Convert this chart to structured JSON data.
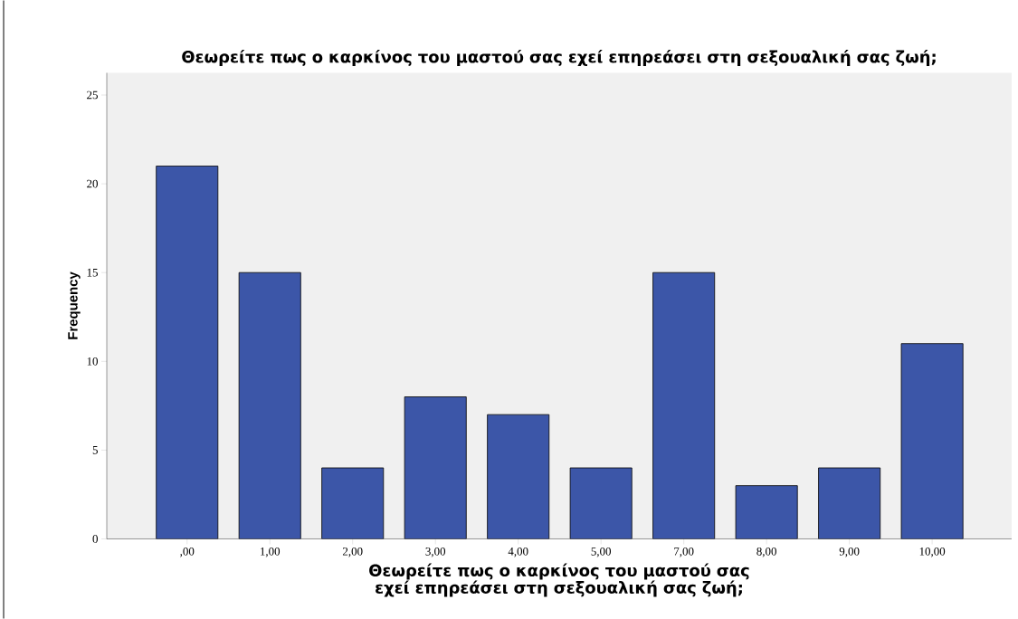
{
  "chart_data": {
    "type": "bar",
    "title": "Θεωρείτε πως ο καρκίνος του μαστού σας εχεί επηρεάσει στη σεξουαλική σας ζωή;",
    "xlabel": "Θεωρείτε πως ο καρκίνος του μαστού σας εχεί επηρεάσει στη σεξουαλική σας ζωή;",
    "ylabel": "Frequency",
    "categories": [
      ",00",
      "1,00",
      "2,00",
      "3,00",
      "4,00",
      "5,00",
      "7,00",
      "8,00",
      "9,00",
      "10,00"
    ],
    "values": [
      21,
      15,
      4,
      8,
      7,
      4,
      15,
      3,
      4,
      11
    ],
    "color": "#3c56a8",
    "ylim": [
      0,
      26.25
    ],
    "yticks": [
      0,
      5,
      10,
      15,
      20,
      25
    ]
  }
}
